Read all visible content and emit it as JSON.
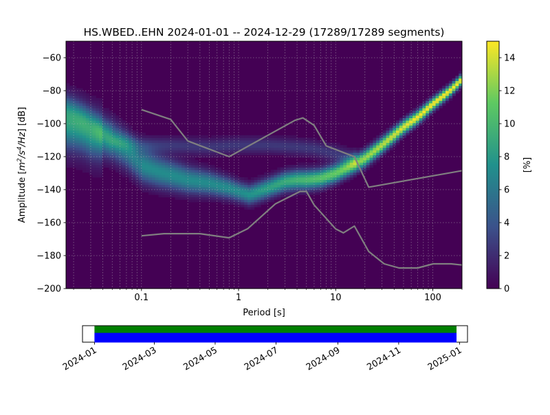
{
  "chart_data": [
    {
      "type": "heatmap",
      "title": "HS.WBED..EHN   2024-01-01 -- 2024-12-29  (17289/17289 segments)",
      "xlabel": "Period [s]",
      "ylabel_prefix": "Amplitude [",
      "ylabel_unit_main": "m",
      "ylabel_sup1": "2",
      "ylabel_mid": "/s",
      "ylabel_sup2": "4",
      "ylabel_tail": "/Hz",
      "ylabel_suffix": "] [dB]",
      "x_scale": "log",
      "xlim": [
        0.0167,
        200
      ],
      "ylim": [
        -200,
        -50
      ],
      "x_ticks": [
        0.1,
        1,
        10,
        100
      ],
      "x_tick_labels": [
        "0.1",
        "1",
        "10",
        "100"
      ],
      "y_ticks": [
        -200,
        -180,
        -160,
        -140,
        -120,
        -100,
        -80,
        -60
      ],
      "y_tick_labels": [
        "−200",
        "−180",
        "−160",
        "−140",
        "−120",
        "−100",
        "−80",
        "−60"
      ],
      "grid": true,
      "colormap": [
        "#440154",
        "#3b528b",
        "#21918c",
        "#5ec962",
        "#fde725"
      ],
      "colorbar": {
        "label": "[%]",
        "range": [
          0,
          15
        ],
        "ticks": [
          0,
          2,
          4,
          6,
          8,
          10,
          12,
          14
        ],
        "tick_labels": [
          "0",
          "2",
          "4",
          "6",
          "8",
          "10",
          "12",
          "14"
        ]
      },
      "main_mode": {
        "period": [
          0.0167,
          0.02,
          0.025,
          0.03,
          0.04,
          0.05,
          0.07,
          0.1,
          0.15,
          0.2,
          0.3,
          0.5,
          0.8,
          1.0,
          1.3,
          2.0,
          3.0,
          4.0,
          5.0,
          7.0,
          10,
          15,
          20,
          30,
          50,
          70,
          100,
          150,
          200
        ],
        "db": [
          -100,
          -101,
          -103,
          -106,
          -108,
          -110,
          -116,
          -125,
          -129,
          -131,
          -134,
          -136,
          -139,
          -141,
          -143,
          -139,
          -135,
          -134,
          -134,
          -133,
          -130,
          -125,
          -121,
          -113,
          -102,
          -96,
          -88,
          -80,
          -73
        ]
      },
      "secondary_mode": {
        "period": [
          0.0167,
          0.03,
          0.05,
          0.1,
          0.2,
          0.5,
          1.0,
          2.0,
          4.0,
          6.0,
          10,
          15
        ],
        "db": [
          -90,
          -98,
          -110,
          -113,
          -113,
          -114,
          -113,
          -113,
          -114,
          -115,
          -118,
          -121
        ]
      },
      "noise_models": [
        {
          "period": [
            0.1,
            0.2,
            0.3,
            0.8,
            3.8,
            4.6,
            6.0,
            8.0,
            15.6,
            21.9,
            200
          ],
          "db": [
            -91.5,
            -97.4,
            -110.5,
            -120,
            -98,
            -96.5,
            -101,
            -113.5,
            -120,
            -138.5,
            -128.5
          ]
        },
        {
          "period": [
            0.1,
            0.17,
            0.4,
            0.8,
            1.24,
            2.4,
            4.3,
            5.0,
            6.0,
            10.0,
            12.0,
            15.6,
            21.9,
            31.6,
            45,
            70,
            101,
            154,
            200
          ],
          "db": [
            -168,
            -166.7,
            -166.7,
            -169.2,
            -163.7,
            -148.6,
            -141.1,
            -141.1,
            -149.3,
            -163.8,
            -166.2,
            -162.1,
            -177.5,
            -185,
            -187.5,
            -187.5,
            -185,
            -185,
            -185.7
          ]
        }
      ]
    },
    {
      "type": "bar",
      "x_ticks": [
        "2024-01",
        "2024-03",
        "2024-05",
        "2024-07",
        "2024-09",
        "2024-11",
        "2025-01"
      ],
      "xlim": [
        "2023-12-20",
        "2025-01-09"
      ],
      "coverage": {
        "start": "2024-01-01",
        "end": "2024-12-29"
      },
      "bands": [
        {
          "name": "data",
          "color": "#008000"
        },
        {
          "name": "gaps-free",
          "color": "#0000ff"
        }
      ]
    }
  ]
}
